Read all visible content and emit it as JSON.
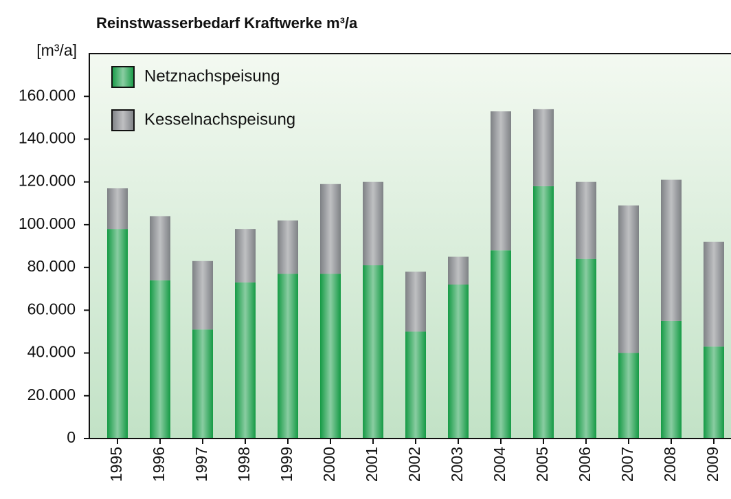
{
  "chart_data": {
    "type": "bar",
    "stacked": true,
    "title": "Reinstwasserbedarf Kraftwerke m³/a",
    "y_label": "[m³/a]",
    "categories": [
      "1995",
      "1996",
      "1997",
      "1998",
      "1999",
      "2000",
      "2001",
      "2002",
      "2003",
      "2004",
      "2005",
      "2006",
      "2007",
      "2008",
      "2009"
    ],
    "series": [
      {
        "name": "Netznachspeisung",
        "color": "#159a45",
        "values": [
          98000,
          74000,
          51000,
          73000,
          77000,
          77000,
          81000,
          50000,
          72000,
          88000,
          118000,
          84000,
          40000,
          55000,
          43000
        ]
      },
      {
        "name": "Kesselnachspeisung",
        "color": "#7e8185",
        "values": [
          19000,
          30000,
          32000,
          25000,
          25000,
          42000,
          39000,
          28000,
          13000,
          65000,
          36000,
          36000,
          69000,
          66000,
          49000
        ]
      }
    ],
    "ylim": [
      0,
      180000
    ],
    "yticks": [
      0,
      {
        "value": 20000,
        "label": "20.000"
      },
      {
        "value": 40000,
        "label": "40.000"
      },
      {
        "value": 60000,
        "label": "60.000"
      },
      {
        "value": 80000,
        "label": "80.000"
      },
      {
        "value": 100000,
        "label": "100.000"
      },
      {
        "value": 120000,
        "label": "120.000"
      },
      {
        "value": 140000,
        "label": "140.000"
      },
      {
        "value": 160000,
        "label": "160.000"
      }
    ],
    "legend": "upper left"
  }
}
